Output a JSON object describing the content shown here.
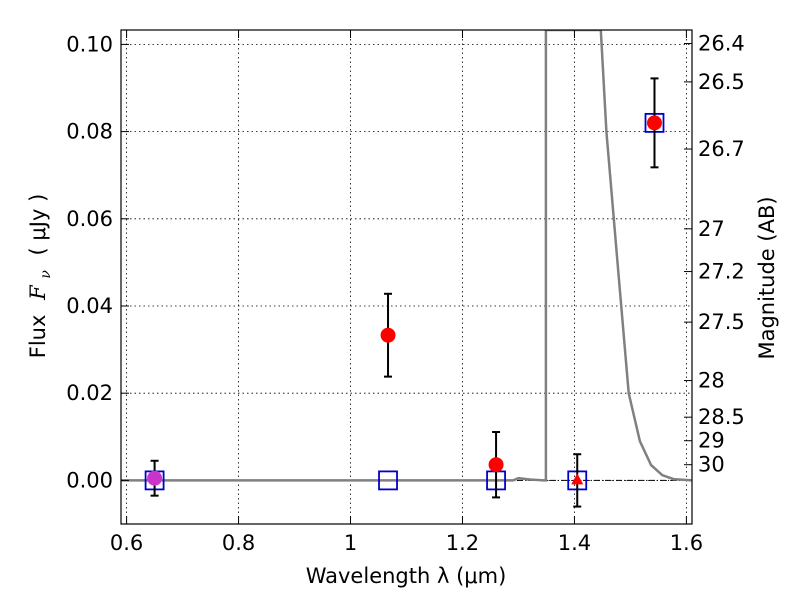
{
  "chart_data": {
    "type": "scatter",
    "xlabel": "Wavelength  λ (μm)",
    "ylabel_text": "Flux",
    "ylabel_symbol": "F",
    "ylabel_symbol_sub": "ν",
    "ylabel_unit": "( μJy )",
    "ylabel_right": "Magnitude (AB)",
    "xlim": [
      0.59,
      1.61
    ],
    "ylim": [
      -0.01,
      0.1033
    ],
    "x_ticks": [
      0.6,
      0.8,
      1.0,
      1.2,
      1.4,
      1.6
    ],
    "x_tick_labels": [
      "0.6",
      "0.8",
      "1",
      "1.2",
      "1.4",
      "1.6"
    ],
    "y_ticks": [
      0.0,
      0.02,
      0.04,
      0.06,
      0.08,
      0.1
    ],
    "y_tick_labels": [
      "0.00",
      "0.02",
      "0.04",
      "0.06",
      "0.08",
      "0.10"
    ],
    "right_ticks": [
      {
        "label": "26.4",
        "flux": 0.1002
      },
      {
        "label": "26.5",
        "flux": 0.0914
      },
      {
        "label": "26.7",
        "flux": 0.076
      },
      {
        "label": "27",
        "flux": 0.0577
      },
      {
        "label": "27.2",
        "flux": 0.0479
      },
      {
        "label": "27.5",
        "flux": 0.0363
      },
      {
        "label": "28",
        "flux": 0.0229
      },
      {
        "label": "28.5",
        "flux": 0.0145
      },
      {
        "label": "29",
        "flux": 0.0091
      },
      {
        "label": "30",
        "flux": 0.0036
      }
    ],
    "grid": "dotted",
    "series": [
      {
        "marker": "circle",
        "color": "#ff0000",
        "points": [
          {
            "x": 0.65,
            "y": 0.0005,
            "err": 0.004
          },
          {
            "x": 1.067,
            "y": 0.0333,
            "err": 0.0095
          },
          {
            "x": 1.26,
            "y": 0.0036,
            "err": 0.0075
          },
          {
            "x": 1.543,
            "y": 0.082,
            "err": 0.0102
          }
        ]
      },
      {
        "marker": "triangle",
        "color": "#ff0000",
        "points": [
          {
            "x": 1.405,
            "y": 0.0,
            "err": 0.006
          }
        ]
      },
      {
        "marker": "open-square",
        "color": "#0000cc",
        "points": [
          {
            "x": 0.65,
            "y": 0.0
          },
          {
            "x": 1.067,
            "y": 0.0
          },
          {
            "x": 1.26,
            "y": 0.0
          },
          {
            "x": 1.405,
            "y": 0.0
          },
          {
            "x": 1.543,
            "y": 0.082
          }
        ]
      },
      {
        "marker": "line",
        "color": "#808080",
        "points": [
          {
            "x": 0.59,
            "y": 0.0
          },
          {
            "x": 1.29,
            "y": 0.0
          },
          {
            "x": 1.3,
            "y": 0.0005
          },
          {
            "x": 1.32,
            "y": 0.0002
          },
          {
            "x": 1.345,
            "y": 0.0
          },
          {
            "x": 1.349,
            "y": 0.0
          },
          {
            "x": 1.349,
            "y": 0.1033
          },
          {
            "x": 1.447,
            "y": 0.1033
          },
          {
            "x": 1.457,
            "y": 0.08
          },
          {
            "x": 1.477,
            "y": 0.05
          },
          {
            "x": 1.497,
            "y": 0.02
          },
          {
            "x": 1.517,
            "y": 0.009
          },
          {
            "x": 1.537,
            "y": 0.0035
          },
          {
            "x": 1.557,
            "y": 0.0012
          },
          {
            "x": 1.577,
            "y": 0.0003
          },
          {
            "x": 1.61,
            "y": 0.0
          }
        ]
      }
    ],
    "colors": {
      "zero_line": "#000000",
      "magenta_marker": "#cc33cc"
    }
  }
}
